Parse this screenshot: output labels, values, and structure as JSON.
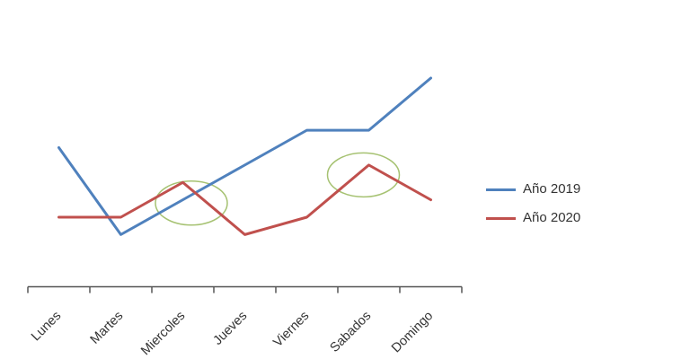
{
  "chart_data": {
    "type": "line",
    "categories": [
      "Lunes",
      "Martes",
      "Miercoles",
      "Jueves",
      "Viernes",
      "Sabados",
      "Domingo"
    ],
    "series": [
      {
        "name": "Año 2019",
        "color": "#4F81BD",
        "values": [
          40,
          15,
          25,
          35,
          45,
          45,
          60
        ]
      },
      {
        "name": "Año 2020",
        "color": "#C0504D",
        "values": [
          20,
          20,
          30,
          15,
          20,
          35,
          25
        ]
      }
    ],
    "ylim": [
      0,
      62
    ],
    "grid": false,
    "legend_position": "right",
    "axis_color": "#555555",
    "label_color": "#333333",
    "annotation_color": "#a6c272",
    "annotations": [
      {
        "shape": "ellipse",
        "category": "Miercoles",
        "series": "Año 2020"
      },
      {
        "shape": "ellipse",
        "category": "Sabados",
        "series": "Año 2020"
      }
    ]
  }
}
